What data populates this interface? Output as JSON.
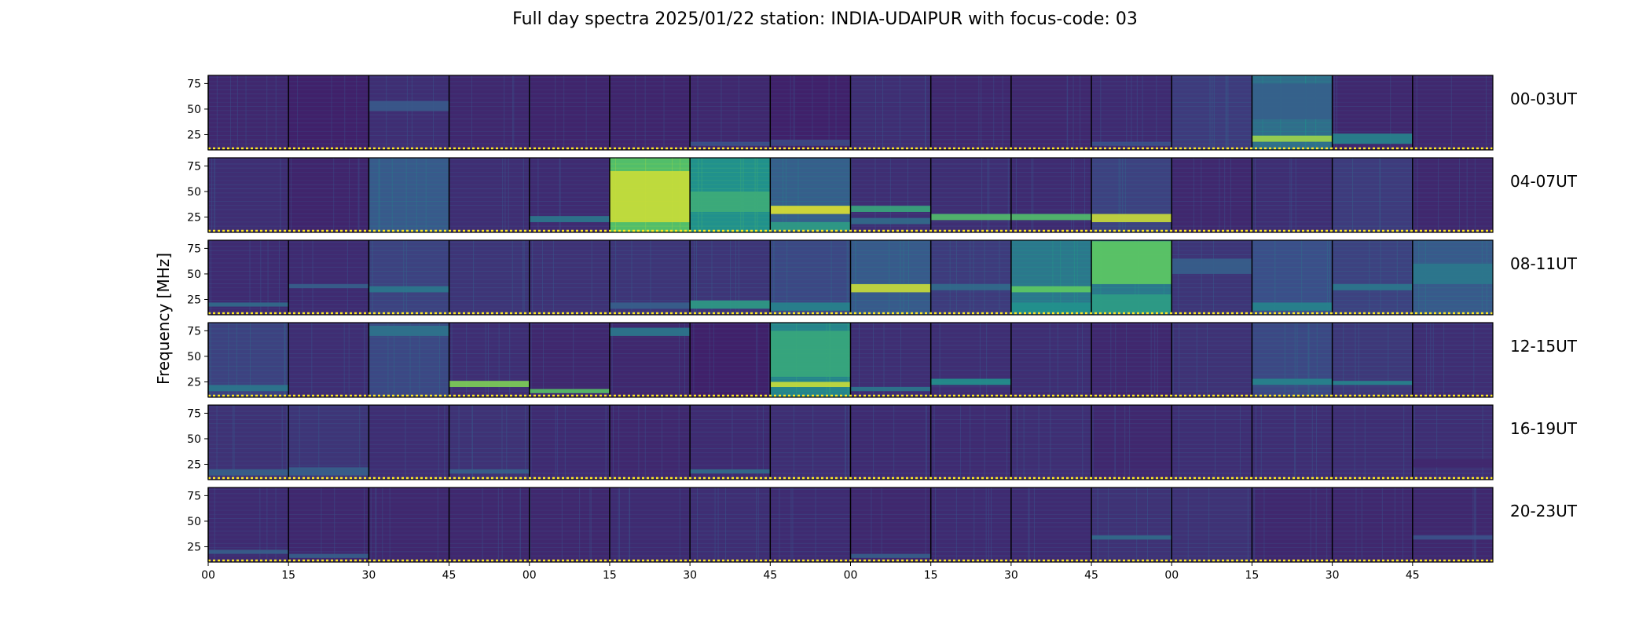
{
  "title": "Full day spectra 2025/01/22 station: INDIA-UDAIPUR with focus-code: 03",
  "colormap": [
    "#440154",
    "#3b528b",
    "#21918c",
    "#5ec962",
    "#fde725"
  ],
  "marker_color": "#fde725",
  "chart_data": {
    "type": "heatmap",
    "title": "Full day spectra 2025/01/22 station: INDIA-UDAIPUR with focus-code: 03",
    "ylabel": "Frequency [MHz]",
    "xlabel": "",
    "y_ticks": [
      "75",
      "50",
      "25"
    ],
    "y_tick_values": [
      75,
      50,
      25
    ],
    "ylim": [
      10,
      83
    ],
    "x_ticks": [
      "00",
      "15",
      "30",
      "45",
      "00",
      "15",
      "30",
      "45",
      "00",
      "15",
      "30",
      "45",
      "00",
      "15",
      "30",
      "45"
    ],
    "x_tick_minutes": [
      0,
      15,
      30,
      45,
      60,
      75,
      90,
      105,
      120,
      135,
      150,
      165,
      180,
      195,
      210,
      225
    ],
    "xlim_minutes": [
      0,
      240
    ],
    "columns_per_row": 16,
    "minutes_per_column": 15,
    "rows": [
      {
        "label": "00-03UT",
        "blocks": [
          {
            "base": 0.12,
            "bands": []
          },
          {
            "base": 0.1,
            "bands": []
          },
          {
            "base": 0.14,
            "bands": [
              [
                48,
                58,
                0.28
              ]
            ]
          },
          {
            "base": 0.12,
            "bands": []
          },
          {
            "base": 0.11,
            "bands": []
          },
          {
            "base": 0.11,
            "bands": []
          },
          {
            "base": 0.12,
            "bands": [
              [
                14,
                18,
                0.25
              ]
            ]
          },
          {
            "base": 0.1,
            "bands": [
              [
                14,
                20,
                0.22
              ]
            ]
          },
          {
            "base": 0.14,
            "bands": []
          },
          {
            "base": 0.12,
            "bands": []
          },
          {
            "base": 0.12,
            "bands": []
          },
          {
            "base": 0.13,
            "bands": [
              [
                14,
                18,
                0.25
              ]
            ]
          },
          {
            "base": 0.18,
            "bands": []
          },
          {
            "base": 0.36,
            "bands": [
              [
                18,
                24,
                0.85
              ],
              [
                40,
                75,
                0.3
              ]
            ]
          },
          {
            "base": 0.12,
            "bands": [
              [
                16,
                26,
                0.45
              ]
            ]
          },
          {
            "base": 0.12,
            "bands": []
          }
        ]
      },
      {
        "label": "04-07UT",
        "blocks": [
          {
            "base": 0.14,
            "bands": []
          },
          {
            "base": 0.11,
            "bands": []
          },
          {
            "base": 0.28,
            "bands": []
          },
          {
            "base": 0.14,
            "bands": []
          },
          {
            "base": 0.13,
            "bands": [
              [
                20,
                26,
                0.4
              ]
            ]
          },
          {
            "base": 0.7,
            "bands": [
              [
                20,
                70,
                0.92
              ]
            ]
          },
          {
            "base": 0.5,
            "bands": [
              [
                30,
                50,
                0.62
              ]
            ]
          },
          {
            "base": 0.3,
            "bands": [
              [
                28,
                36,
                0.95
              ],
              [
                12,
                20,
                0.55
              ]
            ]
          },
          {
            "base": 0.14,
            "bands": [
              [
                30,
                36,
                0.6
              ],
              [
                18,
                24,
                0.35
              ]
            ]
          },
          {
            "base": 0.14,
            "bands": [
              [
                22,
                28,
                0.7
              ]
            ]
          },
          {
            "base": 0.13,
            "bands": [
              [
                22,
                28,
                0.7
              ]
            ]
          },
          {
            "base": 0.2,
            "bands": [
              [
                20,
                28,
                0.92
              ]
            ]
          },
          {
            "base": 0.12,
            "bands": []
          },
          {
            "base": 0.14,
            "bands": []
          },
          {
            "base": 0.18,
            "bands": []
          },
          {
            "base": 0.12,
            "bands": []
          }
        ]
      },
      {
        "label": "08-11UT",
        "blocks": [
          {
            "base": 0.13,
            "bands": [
              [
                18,
                22,
                0.35
              ]
            ]
          },
          {
            "base": 0.13,
            "bands": [
              [
                36,
                40,
                0.3
              ]
            ]
          },
          {
            "base": 0.2,
            "bands": [
              [
                32,
                38,
                0.4
              ]
            ]
          },
          {
            "base": 0.16,
            "bands": []
          },
          {
            "base": 0.15,
            "bands": []
          },
          {
            "base": 0.16,
            "bands": [
              [
                16,
                22,
                0.3
              ]
            ]
          },
          {
            "base": 0.16,
            "bands": [
              [
                16,
                24,
                0.55
              ]
            ]
          },
          {
            "base": 0.22,
            "bands": [
              [
                14,
                22,
                0.45
              ]
            ]
          },
          {
            "base": 0.28,
            "bands": [
              [
                32,
                40,
                0.92
              ]
            ]
          },
          {
            "base": 0.18,
            "bands": [
              [
                34,
                40,
                0.35
              ]
            ]
          },
          {
            "base": 0.4,
            "bands": [
              [
                32,
                38,
                0.75
              ],
              [
                12,
                22,
                0.5
              ]
            ]
          },
          {
            "base": 0.4,
            "bands": [
              [
                40,
                82,
                0.75
              ],
              [
                12,
                30,
                0.55
              ]
            ]
          },
          {
            "base": 0.16,
            "bands": [
              [
                50,
                65,
                0.3
              ]
            ]
          },
          {
            "base": 0.24,
            "bands": [
              [
                14,
                22,
                0.45
              ]
            ]
          },
          {
            "base": 0.2,
            "bands": [
              [
                34,
                40,
                0.4
              ]
            ]
          },
          {
            "base": 0.28,
            "bands": [
              [
                40,
                60,
                0.4
              ]
            ]
          }
        ]
      },
      {
        "label": "12-15UT",
        "blocks": [
          {
            "base": 0.2,
            "bands": [
              [
                16,
                22,
                0.4
              ]
            ]
          },
          {
            "base": 0.14,
            "bands": []
          },
          {
            "base": 0.22,
            "bands": [
              [
                70,
                80,
                0.38
              ]
            ]
          },
          {
            "base": 0.14,
            "bands": [
              [
                20,
                26,
                0.8
              ]
            ]
          },
          {
            "base": 0.12,
            "bands": [
              [
                14,
                18,
                0.72
              ]
            ]
          },
          {
            "base": 0.12,
            "bands": [
              [
                70,
                78,
                0.4
              ]
            ]
          },
          {
            "base": 0.1,
            "bands": []
          },
          {
            "base": 0.45,
            "bands": [
              [
                20,
                25,
                0.92
              ],
              [
                30,
                75,
                0.6
              ]
            ]
          },
          {
            "base": 0.14,
            "bands": [
              [
                16,
                20,
                0.4
              ]
            ]
          },
          {
            "base": 0.14,
            "bands": [
              [
                22,
                28,
                0.5
              ]
            ]
          },
          {
            "base": 0.14,
            "bands": []
          },
          {
            "base": 0.12,
            "bands": []
          },
          {
            "base": 0.15,
            "bands": []
          },
          {
            "base": 0.22,
            "bands": [
              [
                22,
                28,
                0.45
              ]
            ]
          },
          {
            "base": 0.17,
            "bands": [
              [
                22,
                26,
                0.45
              ]
            ]
          },
          {
            "base": 0.14,
            "bands": []
          }
        ]
      },
      {
        "label": "16-19UT",
        "blocks": [
          {
            "base": 0.15,
            "bands": [
              [
                14,
                20,
                0.3
              ]
            ]
          },
          {
            "base": 0.16,
            "bands": [
              [
                14,
                22,
                0.3
              ]
            ]
          },
          {
            "base": 0.14,
            "bands": []
          },
          {
            "base": 0.15,
            "bands": [
              [
                16,
                20,
                0.3
              ]
            ]
          },
          {
            "base": 0.13,
            "bands": []
          },
          {
            "base": 0.12,
            "bands": []
          },
          {
            "base": 0.13,
            "bands": [
              [
                16,
                20,
                0.35
              ]
            ]
          },
          {
            "base": 0.14,
            "bands": []
          },
          {
            "base": 0.13,
            "bands": []
          },
          {
            "base": 0.13,
            "bands": []
          },
          {
            "base": 0.14,
            "bands": []
          },
          {
            "base": 0.12,
            "bands": []
          },
          {
            "base": 0.14,
            "bands": []
          },
          {
            "base": 0.14,
            "bands": []
          },
          {
            "base": 0.14,
            "bands": []
          },
          {
            "base": 0.14,
            "bands": [
              [
                22,
                30,
                0.12
              ]
            ]
          }
        ]
      },
      {
        "label": "20-23UT",
        "blocks": [
          {
            "base": 0.13,
            "bands": [
              [
                18,
                22,
                0.3
              ]
            ]
          },
          {
            "base": 0.12,
            "bands": [
              [
                14,
                18,
                0.3
              ]
            ]
          },
          {
            "base": 0.12,
            "bands": []
          },
          {
            "base": 0.12,
            "bands": []
          },
          {
            "base": 0.12,
            "bands": []
          },
          {
            "base": 0.13,
            "bands": []
          },
          {
            "base": 0.14,
            "bands": []
          },
          {
            "base": 0.13,
            "bands": []
          },
          {
            "base": 0.12,
            "bands": [
              [
                14,
                18,
                0.3
              ]
            ]
          },
          {
            "base": 0.13,
            "bands": []
          },
          {
            "base": 0.13,
            "bands": []
          },
          {
            "base": 0.15,
            "bands": [
              [
                32,
                36,
                0.35
              ]
            ]
          },
          {
            "base": 0.15,
            "bands": []
          },
          {
            "base": 0.12,
            "bands": []
          },
          {
            "base": 0.12,
            "bands": []
          },
          {
            "base": 0.12,
            "bands": [
              [
                32,
                36,
                0.25
              ]
            ]
          }
        ]
      }
    ]
  }
}
